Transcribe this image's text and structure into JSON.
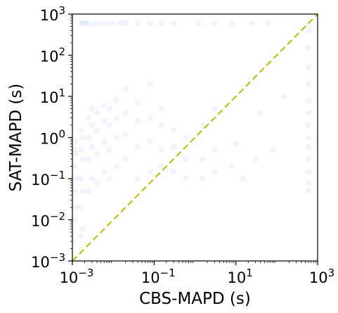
{
  "chart_data": {
    "type": "scatter",
    "title": "",
    "xlabel": "CBS-MAPD (s)",
    "ylabel": "SAT-MAPD (s)",
    "xscale": "log",
    "yscale": "log",
    "xlim": [
      0.001,
      1000
    ],
    "ylim": [
      0.001,
      1000
    ],
    "x_ticks": [
      {
        "base": "10",
        "exp": "−3",
        "value": 0.001
      },
      {
        "base": "10",
        "exp": "−1",
        "value": 0.1
      },
      {
        "base": "10",
        "exp": "1",
        "value": 10
      },
      {
        "base": "10",
        "exp": "3",
        "value": 1000
      }
    ],
    "y_ticks": [
      {
        "base": "10",
        "exp": "−3",
        "value": 0.001
      },
      {
        "base": "10",
        "exp": "−2",
        "value": 0.01
      },
      {
        "base": "10",
        "exp": "−1",
        "value": 0.1
      },
      {
        "base": "10",
        "exp": "0",
        "value": 1
      },
      {
        "base": "10",
        "exp": "1",
        "value": 10
      },
      {
        "base": "10",
        "exp": "2",
        "value": 100
      },
      {
        "base": "10",
        "exp": "3",
        "value": 1000
      }
    ],
    "grid": false,
    "marker_color": "#4a78e0",
    "marker_alpha": 0.08,
    "diagonal": {
      "from": [
        0.001,
        0.001
      ],
      "to": [
        1000,
        1000
      ],
      "color": "#bdbd00",
      "style": "dashed"
    },
    "series": [
      {
        "points": [
          [
            0.0016,
            600
          ],
          [
            0.0018,
            600
          ],
          [
            0.0021,
            600
          ],
          [
            0.0024,
            600
          ],
          [
            0.0035,
            600
          ],
          [
            0.005,
            600
          ],
          [
            0.007,
            600
          ],
          [
            0.01,
            600
          ],
          [
            0.015,
            600
          ],
          [
            0.02,
            600
          ],
          [
            0.04,
            600
          ],
          [
            0.08,
            600
          ],
          [
            0.15,
            600
          ],
          [
            0.3,
            600
          ],
          [
            1.2,
            600
          ],
          [
            3,
            600
          ],
          [
            8,
            600
          ],
          [
            25,
            600
          ],
          [
            60,
            600
          ],
          [
            600,
            600
          ],
          [
            0.0011,
            0.003
          ],
          [
            0.0011,
            0.01
          ],
          [
            0.0011,
            0.05
          ],
          [
            0.0011,
            0.2
          ],
          [
            0.0011,
            0.5
          ],
          [
            0.0012,
            0.02
          ],
          [
            0.0012,
            0.1
          ],
          [
            0.0012,
            0.4
          ],
          [
            0.0012,
            0.8
          ],
          [
            0.0016,
            0.004
          ],
          [
            0.0016,
            0.02
          ],
          [
            0.0016,
            0.1
          ],
          [
            0.0016,
            0.5
          ],
          [
            0.0016,
            1.5
          ],
          [
            0.0018,
            0.006
          ],
          [
            0.0018,
            0.05
          ],
          [
            0.0018,
            0.3
          ],
          [
            0.0018,
            1
          ],
          [
            0.0025,
            0.05
          ],
          [
            0.0025,
            0.3
          ],
          [
            0.0025,
            1
          ],
          [
            0.0025,
            3
          ],
          [
            0.003,
            0.1
          ],
          [
            0.003,
            0.6
          ],
          [
            0.003,
            2
          ],
          [
            0.003,
            5
          ],
          [
            0.004,
            0.08
          ],
          [
            0.004,
            0.4
          ],
          [
            0.004,
            1.5
          ],
          [
            0.004,
            4
          ],
          [
            0.006,
            0.15
          ],
          [
            0.006,
            0.8
          ],
          [
            0.006,
            2.5
          ],
          [
            0.006,
            6
          ],
          [
            0.008,
            0.1
          ],
          [
            0.008,
            0.5
          ],
          [
            0.008,
            2
          ],
          [
            0.008,
            5
          ],
          [
            0.012,
            0.2
          ],
          [
            0.012,
            1
          ],
          [
            0.012,
            3
          ],
          [
            0.012,
            8
          ],
          [
            0.02,
            0.3
          ],
          [
            0.02,
            1.2
          ],
          [
            0.02,
            4
          ],
          [
            0.02,
            15
          ],
          [
            0.04,
            0.1
          ],
          [
            0.04,
            0.6
          ],
          [
            0.04,
            2.5
          ],
          [
            0.04,
            7
          ],
          [
            0.08,
            0.15
          ],
          [
            0.08,
            0.8
          ],
          [
            0.08,
            3
          ],
          [
            0.08,
            20
          ],
          [
            0.15,
            0.2
          ],
          [
            0.15,
            0.5
          ],
          [
            0.15,
            2
          ],
          [
            0.15,
            5
          ],
          [
            0.3,
            0.15
          ],
          [
            0.3,
            0.6
          ],
          [
            0.3,
            1.5
          ],
          [
            0.6,
            0.1
          ],
          [
            0.6,
            0.3
          ],
          [
            0.6,
            1
          ],
          [
            1.5,
            0.1
          ],
          [
            1.5,
            0.3
          ],
          [
            1.5,
            2
          ],
          [
            3,
            0.15
          ],
          [
            3,
            0.5
          ],
          [
            3,
            5
          ],
          [
            8,
            0.2
          ],
          [
            10,
            0.7
          ],
          [
            15,
            0.1
          ],
          [
            30,
            0.3
          ],
          [
            40,
            4
          ],
          [
            80,
            0.5
          ],
          [
            150,
            10
          ],
          [
            600,
            0.05
          ],
          [
            600,
            0.08
          ],
          [
            600,
            0.15
          ],
          [
            600,
            0.3
          ],
          [
            600,
            0.6
          ],
          [
            600,
            1
          ],
          [
            600,
            2
          ],
          [
            600,
            4
          ],
          [
            600,
            8
          ],
          [
            600,
            20
          ],
          [
            600,
            50
          ],
          [
            600,
            150
          ],
          [
            600,
            400
          ]
        ]
      }
    ]
  }
}
